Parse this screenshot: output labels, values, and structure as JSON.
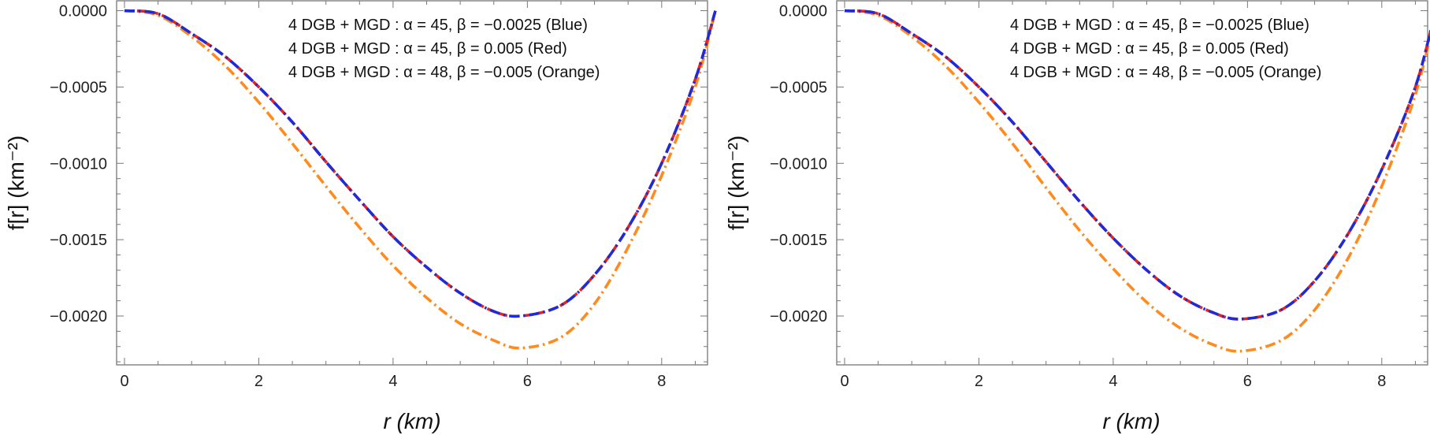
{
  "colors": {
    "blue": "#1f2bd6",
    "red": "#e8231c",
    "orange": "#ff8a1e",
    "frame": "#777777"
  },
  "chart_data": [
    {
      "type": "line",
      "xlabel": "r (km)",
      "ylabel": "f[r] (km⁻²)",
      "xlim": [
        0,
        8.8
      ],
      "ylim": [
        -0.00232,
        7e-05
      ],
      "x_ticks": [
        "0",
        "2",
        "4",
        "6",
        "8"
      ],
      "y_ticks": [
        "0.0000",
        "−0.0005",
        "−0.0010",
        "−0.0015",
        "−0.0020"
      ],
      "grid": false,
      "legend_position": "top-right",
      "series": [
        {
          "name": "4 DGB + MGD : α = 45, β = −0.0025 (Blue)",
          "color": "#1f2bd6",
          "style": "dashdot",
          "x": [
            0,
            0.5,
            1,
            1.5,
            2,
            2.5,
            3,
            3.5,
            4,
            4.5,
            5,
            5.5,
            5.9,
            6.5,
            7,
            7.5,
            8,
            8.5,
            8.8
          ],
          "y": [
            0,
            -2e-05,
            -0.00015,
            -0.0003,
            -0.0005,
            -0.00073,
            -0.00099,
            -0.00124,
            -0.00148,
            -0.00168,
            -0.00185,
            -0.00197,
            -0.002,
            -0.00193,
            -0.00173,
            -0.00142,
            -0.001,
            -0.00045,
            0
          ]
        },
        {
          "name": "4 DGB + MGD : α = 45, β = 0.005 (Red)",
          "color": "#e8231c",
          "style": "dash",
          "x": [
            0,
            0.5,
            1,
            1.5,
            2,
            2.5,
            3,
            3.5,
            4,
            4.5,
            5,
            5.5,
            5.9,
            6.5,
            7,
            7.5,
            8,
            8.5,
            8.8
          ],
          "y": [
            0,
            -2e-05,
            -0.00015,
            -0.0003,
            -0.0005,
            -0.00073,
            -0.00099,
            -0.00124,
            -0.00148,
            -0.00168,
            -0.00185,
            -0.00197,
            -0.002,
            -0.00193,
            -0.00173,
            -0.00142,
            -0.001,
            -0.00045,
            0
          ]
        },
        {
          "name": "4 DGB + MGD : α = 48, β = −0.005 (Orange)",
          "color": "#ff8a1e",
          "style": "dashdot",
          "x": [
            0,
            0.5,
            1,
            1.5,
            2,
            2.5,
            3,
            3.5,
            4,
            4.5,
            5,
            5.5,
            5.9,
            6.5,
            7,
            7.5,
            8,
            8.5,
            8.8
          ],
          "y": [
            0,
            -3e-05,
            -0.00017,
            -0.00036,
            -0.0006,
            -0.00087,
            -0.00115,
            -0.00142,
            -0.00167,
            -0.00188,
            -0.00205,
            -0.00216,
            -0.00221,
            -0.00214,
            -0.00192,
            -0.00155,
            -0.00108,
            -0.0005,
            0
          ]
        }
      ]
    },
    {
      "type": "line",
      "xlabel": "r (km)",
      "ylabel": "f[r] (km⁻²)",
      "xlim": [
        0,
        8.8
      ],
      "ylim": [
        -0.00232,
        7e-05
      ],
      "x_ticks": [
        "0",
        "2",
        "4",
        "6",
        "8"
      ],
      "y_ticks": [
        "0.0000",
        "−0.0005",
        "−0.0010",
        "−0.0015",
        "−0.0020"
      ],
      "grid": false,
      "legend_position": "top-right",
      "series": [
        {
          "name": "4 DGB + MGD : α = 45, β = −0.0025 (Blue)",
          "color": "#1f2bd6",
          "style": "dashdot",
          "x": [
            0,
            0.5,
            1,
            1.5,
            2,
            2.5,
            3,
            3.5,
            4,
            4.5,
            5,
            5.5,
            5.9,
            6.5,
            7,
            7.5,
            8,
            8.5,
            8.8
          ],
          "y": [
            0,
            -2e-05,
            -0.00015,
            -0.0003,
            -0.0005,
            -0.00073,
            -0.00099,
            -0.00125,
            -0.00149,
            -0.0017,
            -0.00187,
            -0.00198,
            -0.00202,
            -0.00196,
            -0.00177,
            -0.00146,
            -0.00104,
            -0.0005,
            0
          ]
        },
        {
          "name": "4 DGB + MGD : α = 45, β = 0.005 (Red)",
          "color": "#e8231c",
          "style": "dash",
          "x": [
            0,
            0.5,
            1,
            1.5,
            2,
            2.5,
            3,
            3.5,
            4,
            4.5,
            5,
            5.5,
            5.9,
            6.5,
            7,
            7.5,
            8,
            8.5,
            8.8
          ],
          "y": [
            0,
            -2e-05,
            -0.00015,
            -0.0003,
            -0.0005,
            -0.00073,
            -0.00099,
            -0.00125,
            -0.00149,
            -0.0017,
            -0.00187,
            -0.00198,
            -0.00202,
            -0.00196,
            -0.00177,
            -0.00146,
            -0.00104,
            -0.0005,
            0
          ]
        },
        {
          "name": "4 DGB + MGD : α = 48, β = −0.005 (Orange)",
          "color": "#ff8a1e",
          "style": "dashdot",
          "x": [
            0,
            0.5,
            1,
            1.5,
            2,
            2.5,
            3,
            3.5,
            4,
            4.5,
            5,
            5.5,
            5.9,
            6.5,
            7,
            7.5,
            8,
            8.5,
            8.8
          ],
          "y": [
            0,
            -3e-05,
            -0.00017,
            -0.00036,
            -0.0006,
            -0.00087,
            -0.00116,
            -0.00144,
            -0.00169,
            -0.00191,
            -0.00208,
            -0.00219,
            -0.00223,
            -0.00216,
            -0.00196,
            -0.00162,
            -0.00115,
            -0.00055,
            -2e-05
          ]
        }
      ]
    }
  ]
}
